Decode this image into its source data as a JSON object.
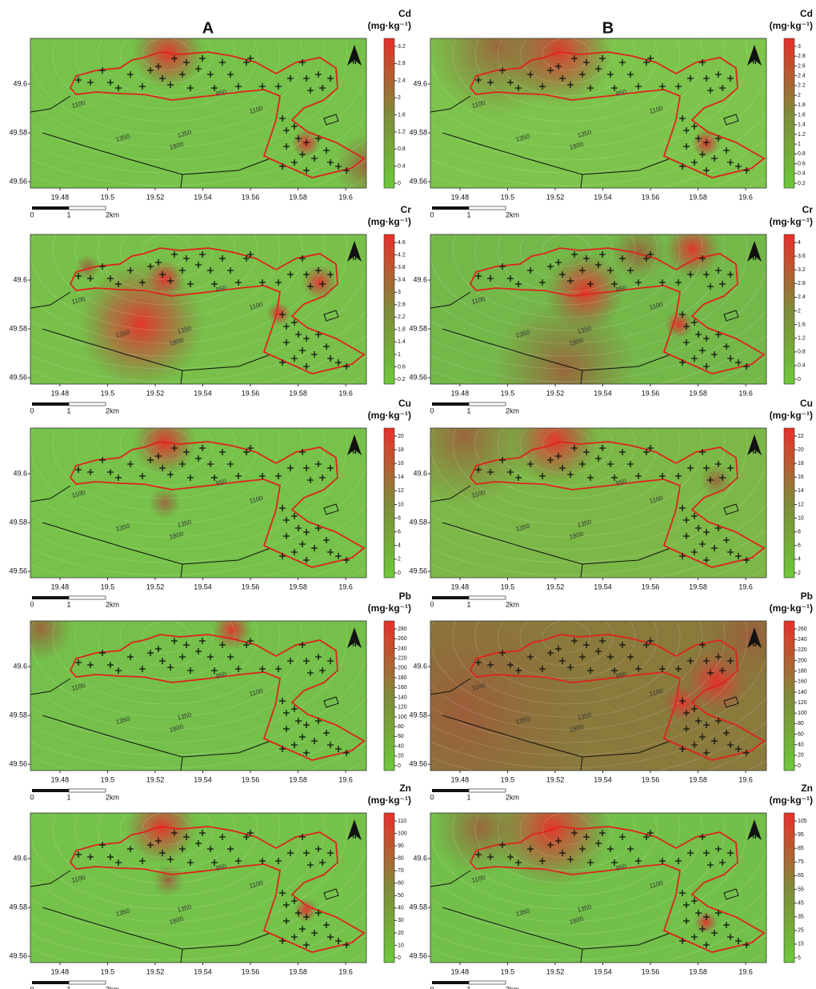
{
  "columns": [
    "A",
    "B"
  ],
  "north_label": "N",
  "axes": {
    "xlim": [
      19.4676,
      19.6087
    ],
    "ylim": [
      49.5574,
      49.6187
    ],
    "xticks": [
      19.48,
      19.5,
      19.52,
      19.54,
      19.56,
      19.58,
      19.6
    ],
    "yticks": [
      49.6,
      49.58,
      49.56
    ]
  },
  "scale_bar": [
    "0",
    "1",
    "2km"
  ],
  "contour_labels": [
    "1100",
    "1350",
    "1350",
    "1800",
    "1100",
    "950"
  ],
  "panels": [
    {
      "column": "A",
      "element": "Cd",
      "unit": "(mg·kg⁻¹)",
      "colorbar_ticks": [
        0,
        0.4,
        0.8,
        1.2,
        1.6,
        2,
        2.4,
        2.8,
        3.2
      ]
    },
    {
      "column": "B",
      "element": "Cd",
      "unit": "(mg·kg⁻¹)",
      "colorbar_ticks": [
        0.2,
        0.4,
        0.6,
        0.8,
        1,
        1.2,
        1.4,
        1.6,
        1.8,
        2,
        2.2,
        2.4,
        2.6,
        2.8,
        3
      ]
    },
    {
      "column": "A",
      "element": "Cr",
      "unit": "(mg·kg⁻¹)",
      "colorbar_ticks": [
        0.2,
        0.6,
        1,
        1.4,
        1.8,
        2.2,
        2.6,
        3,
        3.4,
        3.8,
        4.2,
        4.6
      ]
    },
    {
      "column": "B",
      "element": "Cr",
      "unit": "(mg·kg⁻¹)",
      "colorbar_ticks": [
        0,
        0.4,
        0.8,
        1.2,
        1.6,
        2,
        2.4,
        2.8,
        3.2,
        3.6,
        4
      ]
    },
    {
      "column": "A",
      "element": "Cu",
      "unit": "(mg·kg⁻¹)",
      "colorbar_ticks": [
        0,
        2,
        4,
        6,
        8,
        10,
        12,
        14,
        16,
        18,
        20
      ]
    },
    {
      "column": "B",
      "element": "Cu",
      "unit": "(mg·kg⁻¹)",
      "colorbar_ticks": [
        2,
        4,
        6,
        8,
        10,
        12,
        14,
        16,
        18,
        20,
        22
      ]
    },
    {
      "column": "A",
      "element": "Pb",
      "unit": "(mg·kg⁻¹)",
      "colorbar_ticks": [
        0,
        20,
        40,
        60,
        80,
        100,
        120,
        140,
        160,
        180,
        200,
        220,
        240,
        260,
        280
      ]
    },
    {
      "column": "B",
      "element": "Pb",
      "unit": "(mg·kg⁻¹)",
      "colorbar_ticks": [
        0,
        20,
        40,
        60,
        80,
        100,
        120,
        140,
        160,
        180,
        200,
        220,
        240,
        260
      ]
    },
    {
      "column": "A",
      "element": "Zn",
      "unit": "(mg·kg⁻¹)",
      "colorbar_ticks": [
        0,
        10,
        20,
        30,
        40,
        50,
        60,
        70,
        80,
        90,
        100,
        110
      ]
    },
    {
      "column": "B",
      "element": "Zn",
      "unit": "(mg·kg⁻¹)",
      "colorbar_ticks": [
        5,
        15,
        25,
        35,
        45,
        55,
        65,
        75,
        85,
        95,
        105
      ]
    }
  ]
}
